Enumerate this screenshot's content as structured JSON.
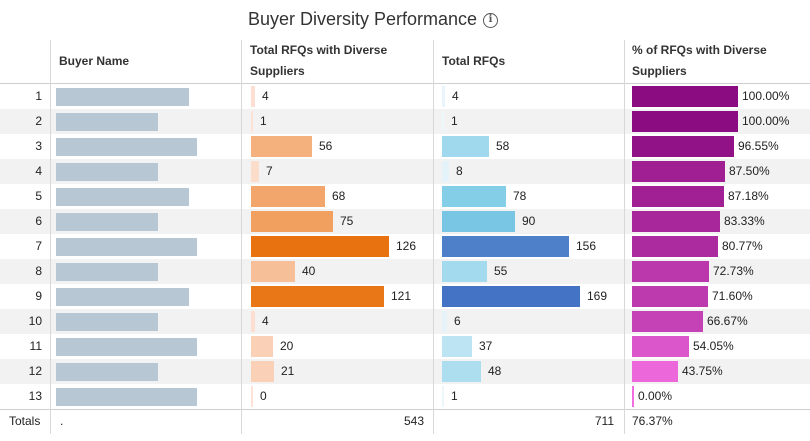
{
  "title": "Buyer Diversity Performance",
  "info_icon": "info-icon",
  "headers": {
    "buyer_name": "Buyer Name",
    "diverse_rfqs": "Total RFQs with Diverse Suppliers",
    "total_rfqs": "Total RFQs",
    "pct_diverse": "% of RFQs with Diverse Suppliers"
  },
  "chart_data": {
    "type": "table",
    "columns": [
      "Buyer Name",
      "Total RFQs with Diverse Suppliers",
      "Total RFQs",
      "% of RFQs with Diverse Suppliers"
    ],
    "row_numbers": [
      1,
      2,
      3,
      4,
      5,
      6,
      7,
      8,
      9,
      10,
      11,
      12,
      13
    ],
    "buyer_name_bar_fraction": [
      0.83,
      0.64,
      0.88,
      0.64,
      0.83,
      0.64,
      0.88,
      0.64,
      0.83,
      0.64,
      0.88,
      0.64,
      0.88
    ],
    "diverse_rfqs": [
      4,
      1,
      56,
      7,
      68,
      75,
      126,
      40,
      121,
      4,
      20,
      21,
      0
    ],
    "total_rfqs": [
      4,
      1,
      58,
      8,
      78,
      90,
      156,
      55,
      169,
      6,
      37,
      48,
      1
    ],
    "pct_diverse": [
      "100.00%",
      "100.00%",
      "96.55%",
      "87.50%",
      "87.18%",
      "83.33%",
      "80.77%",
      "72.73%",
      "71.60%",
      "66.67%",
      "54.05%",
      "43.75%",
      "0.00%"
    ],
    "pct_values": [
      100.0,
      100.0,
      96.55,
      87.5,
      87.18,
      83.33,
      80.77,
      72.73,
      71.6,
      66.67,
      54.05,
      43.75,
      0.0
    ],
    "diverse_max": 126,
    "total_max": 169,
    "pct_max": 100,
    "colors": {
      "buyer_bar": "#b7c8d4",
      "diverse_low": "#fde3d7",
      "diverse_high": "#e8720f",
      "total_low": "#eef7fb",
      "total_mid": "#7ccbe6",
      "total_high": "#4472c4",
      "pct_low": "#f26de0",
      "pct_high": "#8b0c80"
    }
  },
  "totals": {
    "label": "Totals",
    "buyer": ".",
    "diverse_rfqs": "543",
    "total_rfqs": "711",
    "pct_diverse": "76.37%"
  }
}
